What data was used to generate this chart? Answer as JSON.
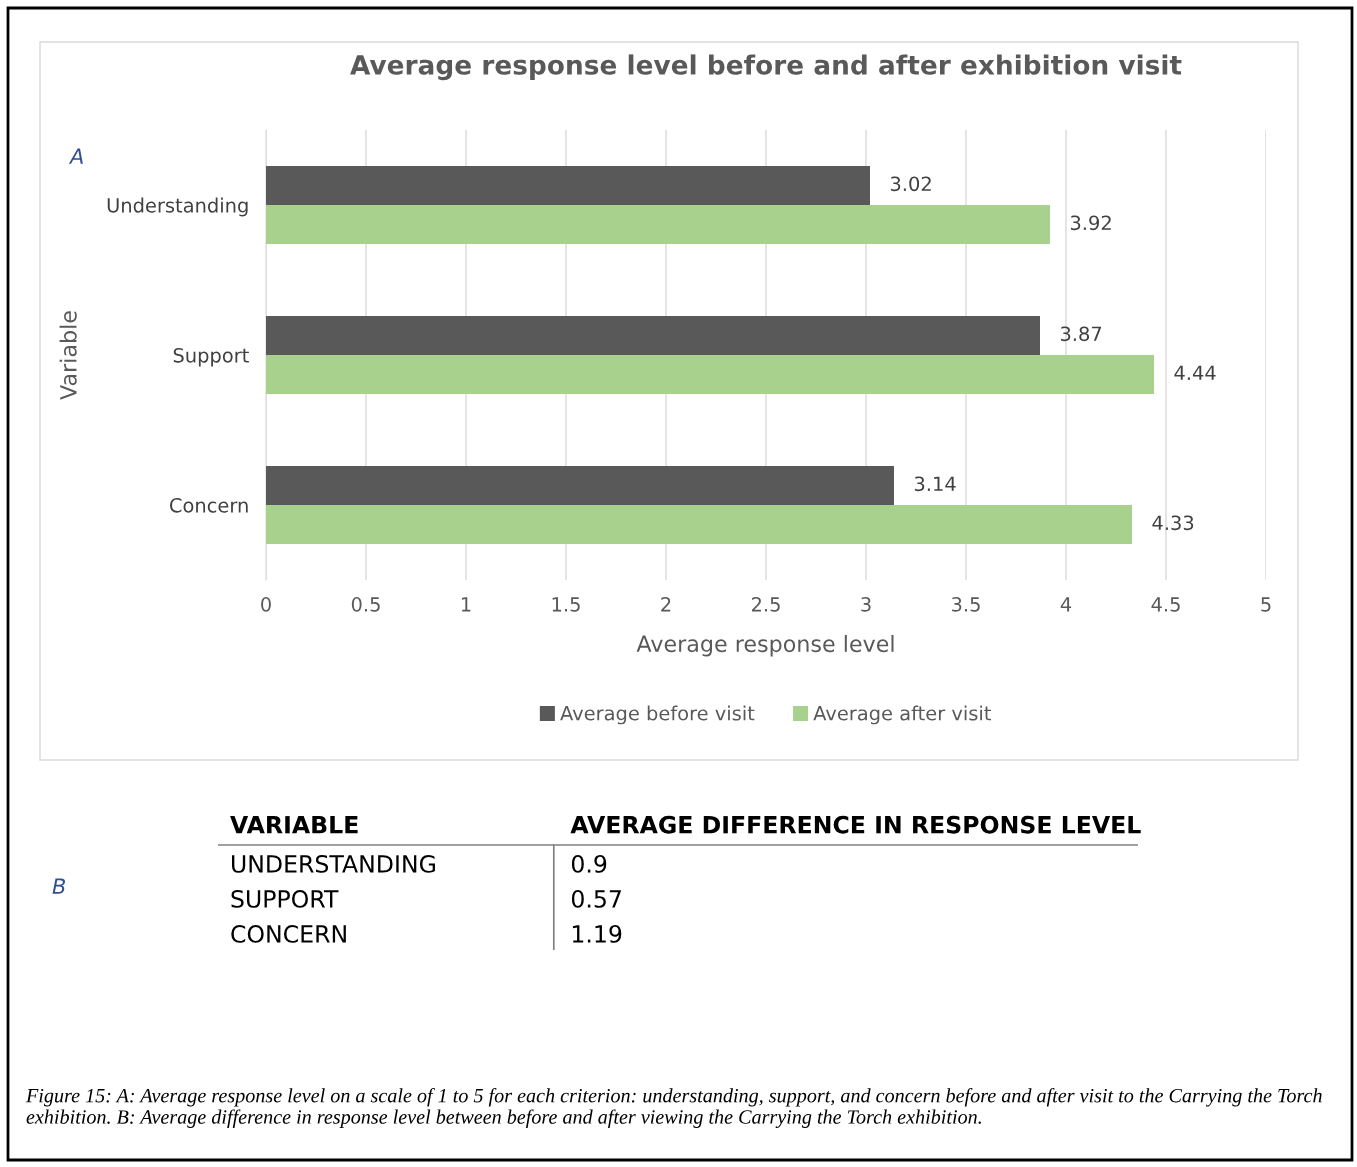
{
  "chart_data": [
    {
      "type": "bar",
      "orientation": "horizontal",
      "title": "Average response level before and after exhibition visit",
      "xlabel": "Average response level",
      "ylabel": "Variable",
      "categories": [
        "Understanding",
        "Support",
        "Concern"
      ],
      "series": [
        {
          "name": "Average before visit",
          "color": "#595959",
          "values": [
            3.02,
            3.87,
            3.14
          ]
        },
        {
          "name": "Average after visit",
          "color": "#a9d18e",
          "values": [
            3.92,
            4.44,
            4.33
          ]
        }
      ],
      "xlim": [
        0,
        5
      ],
      "xticks": [
        0,
        0.5,
        1,
        1.5,
        2,
        2.5,
        3,
        3.5,
        4,
        4.5,
        5
      ],
      "grid": "x",
      "legend": "bottom",
      "data_labels": true,
      "annotations": [
        "A",
        "Figure 15: A: Average response level on a scale of 1 to 5 for each criterion: understanding, support, and concern before and after visit to the Carrying the Torch exhibition. B: Average difference in response level between before and after viewing the Carrying the Torch exhibition."
      ]
    },
    {
      "type": "other",
      "xlabel": "VARIABLE",
      "ylabel": "AVERAGE DIFFERENCE IN RESPONSE LEVEL",
      "categories": [
        "UNDERSTANDING",
        "SUPPORT",
        "CONCERN"
      ],
      "values": [
        0.9,
        0.57,
        1.19
      ],
      "data_labels": true,
      "annotations": [
        "B"
      ]
    }
  ]
}
